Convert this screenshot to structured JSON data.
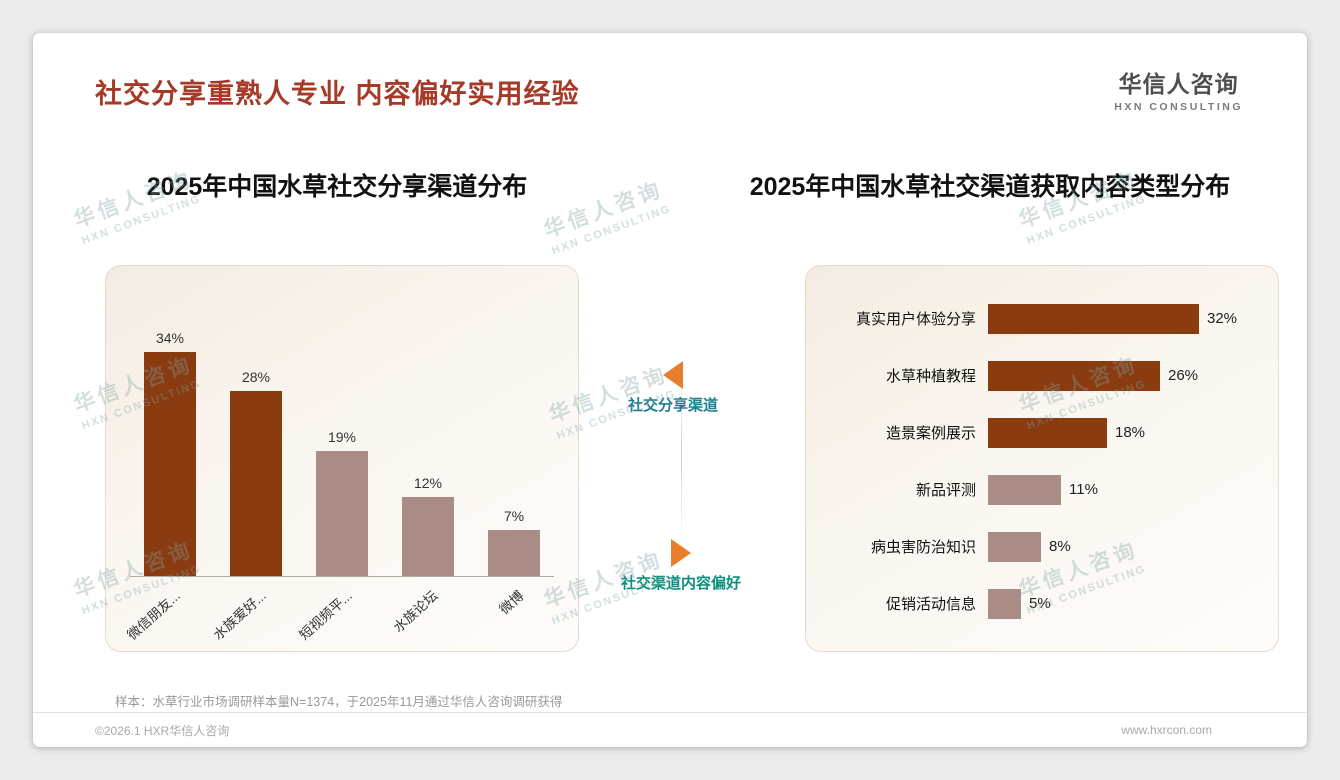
{
  "header": {
    "title": "社交分享重熟人专业 内容偏好实用经验",
    "logo": {
      "name": "华信人咨询",
      "tagline": "HXN CONSULTING"
    }
  },
  "chart_data": [
    {
      "type": "bar",
      "title": "2025年中国水草社交分享渠道分布",
      "categories": [
        "微信朋友...",
        "水族爱好...",
        "短视频平...",
        "水族论坛",
        "微博"
      ],
      "values": [
        34,
        28,
        19,
        12,
        7
      ],
      "unit": "%",
      "ylim": [
        0,
        40
      ],
      "grid": false,
      "colors": [
        "#8A3B10",
        "#8A3B10",
        "#AA8C86",
        "#AA8C86",
        "#AA8C86"
      ]
    },
    {
      "type": "bar",
      "orientation": "horizontal",
      "title": "2025年中国水草社交渠道获取内容类型分布",
      "categories": [
        "真实用户体验分享",
        "水草种植教程",
        "造景案例展示",
        "新品评测",
        "病虫害防治知识",
        "促销活动信息"
      ],
      "values": [
        32,
        26,
        18,
        11,
        8,
        5
      ],
      "unit": "%",
      "xlim": [
        0,
        40
      ],
      "grid": false,
      "colors": [
        "#8A3B10",
        "#8A3B10",
        "#8A3B10",
        "#AA8C86",
        "#AA8C86",
        "#AA8C86"
      ]
    }
  ],
  "annotations": {
    "share_channel_label": "社交分享渠道",
    "content_pref_label": "社交渠道内容偏好"
  },
  "watermark": {
    "line1": "华信人咨询",
    "line2": "HXN CONSULTING"
  },
  "footnote": "样本：水草行业市场调研样本量N=1374，于2025年11月通过华信人咨询调研获得",
  "footer": {
    "copyright": "©2026.1 HXR华信人咨询",
    "website": "www.hxrcon.com"
  },
  "colors": {
    "title_text": "#A63A28",
    "bar_primary": "#8A3B10",
    "bar_secondary": "#AA8C86",
    "arrow_orange": "#E87E2B",
    "annotation_teal_left": "#1D7E8F",
    "annotation_teal_right": "#0E8F7E",
    "watermark": "#7FA3A3"
  }
}
